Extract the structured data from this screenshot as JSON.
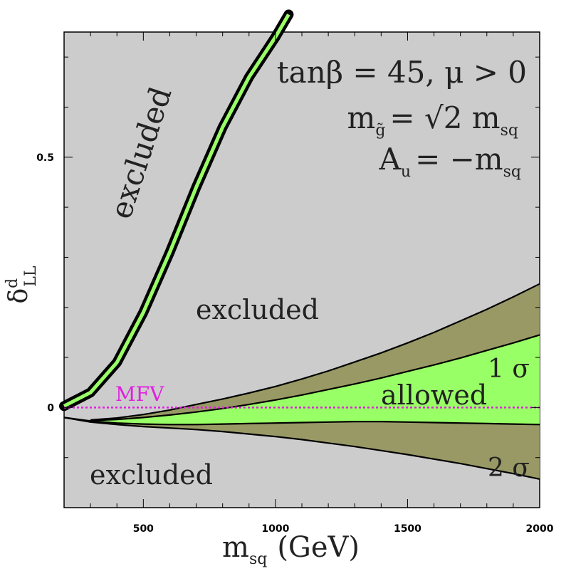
{
  "chart_data": {
    "type": "area",
    "xlabel": "m",
    "xlabel_sub": "sq",
    "xlabel_unit": "(GeV)",
    "ylabel": "δ",
    "ylabel_sup": "d",
    "ylabel_sub": "LL",
    "xlim": [
      200,
      2000
    ],
    "ylim": [
      -0.2,
      0.75
    ],
    "x_ticks": [
      500,
      1000,
      1500,
      2000
    ],
    "x_tick_labels": [
      "500",
      "1000",
      "1500",
      "2000"
    ],
    "y_ticks": [
      0,
      0.5
    ],
    "y_tick_labels": [
      "0",
      "0.5"
    ],
    "grid": false,
    "colors": {
      "background": "#cccccc",
      "allowed_1sigma": "#99ff66",
      "allowed_2sigma": "#999966",
      "mfv_line": "#e020e0",
      "boundary": "#000000"
    },
    "annotations": {
      "params_line1": "tanβ = 45, μ > 0",
      "params_line2_a": "m",
      "params_line2_sub": "g̃",
      "params_line2_b": "= √2 m",
      "params_line2_sub2": "sq",
      "params_line3_a": "A",
      "params_line3_sub": "u",
      "params_line3_b": "= −m",
      "params_line3_sub2": "sq",
      "excluded_upper_rotated": "excluded",
      "excluded_middle": "excluded",
      "excluded_bottom": "excluded",
      "allowed": "allowed",
      "one_sigma": "1 σ",
      "two_sigma": "2 σ",
      "mfv": "MFV"
    },
    "series": [
      {
        "role": "upper_branch_center",
        "x": [
          200,
          300,
          400,
          500,
          600,
          700,
          800,
          900,
          1000,
          1050
        ],
        "y": [
          0.003,
          0.03,
          0.09,
          0.19,
          0.31,
          0.44,
          0.56,
          0.66,
          0.74,
          0.785
        ]
      },
      {
        "role": "band_2sigma_upper",
        "x": [
          300,
          400,
          500,
          600,
          700,
          800,
          900,
          1000,
          1100,
          1200,
          1300,
          1400,
          1500,
          1600,
          1700,
          1800,
          1900,
          2000
        ],
        "y": [
          -0.025,
          -0.021,
          -0.014,
          -0.005,
          0.006,
          0.017,
          0.029,
          0.042,
          0.057,
          0.073,
          0.091,
          0.109,
          0.129,
          0.15,
          0.173,
          0.196,
          0.221,
          0.247
        ]
      },
      {
        "role": "band_1sigma_upper",
        "x": [
          300,
          400,
          500,
          600,
          700,
          800,
          900,
          1000,
          1100,
          1200,
          1300,
          1400,
          1500,
          1600,
          1700,
          1800,
          1900,
          2000
        ],
        "y": [
          -0.026,
          -0.024,
          -0.02,
          -0.015,
          -0.009,
          -0.002,
          0.006,
          0.015,
          0.025,
          0.036,
          0.047,
          0.059,
          0.072,
          0.085,
          0.099,
          0.114,
          0.129,
          0.145
        ]
      },
      {
        "role": "band_1sigma_lower",
        "x": [
          200,
          300,
          400,
          500,
          600,
          700,
          800,
          900,
          1000,
          1100,
          1200,
          1300,
          1400,
          1500,
          1600,
          1700,
          1800,
          1900,
          2000
        ],
        "y": [
          -0.02,
          -0.027,
          -0.031,
          -0.033,
          -0.034,
          -0.034,
          -0.033,
          -0.032,
          -0.031,
          -0.03,
          -0.029,
          -0.028,
          -0.028,
          -0.029,
          -0.03,
          -0.031,
          -0.032,
          -0.033,
          -0.034
        ]
      },
      {
        "role": "band_2sigma_lower",
        "x": [
          200,
          300,
          400,
          500,
          600,
          700,
          800,
          900,
          1000,
          1100,
          1200,
          1300,
          1400,
          1500,
          1600,
          1700,
          1800,
          1900,
          2000
        ],
        "y": [
          -0.02,
          -0.029,
          -0.034,
          -0.038,
          -0.041,
          -0.044,
          -0.048,
          -0.053,
          -0.058,
          -0.064,
          -0.071,
          -0.078,
          -0.086,
          -0.094,
          -0.103,
          -0.112,
          -0.122,
          -0.132,
          -0.143
        ]
      },
      {
        "role": "mfv_line",
        "x": [
          200,
          2000
        ],
        "y": [
          0,
          0
        ]
      }
    ]
  }
}
